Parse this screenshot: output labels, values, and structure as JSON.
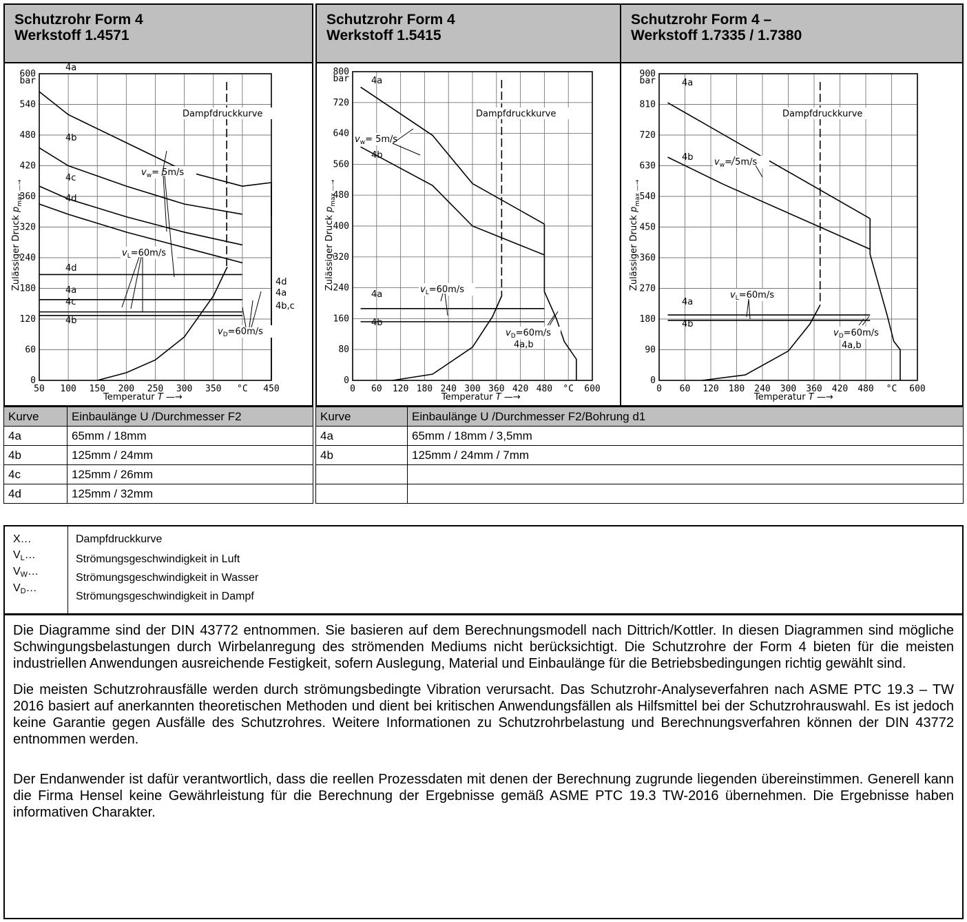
{
  "columns": [
    {
      "title1": "Schutzrohr Form 4",
      "title2": "Werkstoff 1.4571"
    },
    {
      "title1": "Schutzrohr Form 4",
      "title2": "Werkstoff 1.5415"
    },
    {
      "title1": "Schutzrohr Form 4 –",
      "title2": "Werkstoff 1.7335 / 1.7380"
    }
  ],
  "chart_labels": {
    "ylabel": "Zulässiger Druck",
    "pmax": "p",
    "pmax_sub": "max",
    "xlabel": "Temperatur",
    "xsym": "T",
    "unit_bar": "bar",
    "unit_c": "°C",
    "dampf": "Dampfdruckkurve",
    "vw": "v",
    "vw_sub": "w",
    "vw_val": "= 5m/s",
    "vl": "v",
    "vl_sub": "L",
    "vl_val": "=60m/s",
    "vd": "v",
    "vd_sub": "D",
    "vd_val": "=60m/s"
  },
  "chart_data": [
    {
      "type": "line",
      "title": "Schutzrohr Form 4 Werkstoff 1.4571",
      "xlabel": "Temperatur T",
      "ylabel": "Zulässiger Druck p max",
      "x_unit": "°C",
      "y_unit": "bar",
      "xlim": [
        50,
        450
      ],
      "ylim": [
        0,
        600
      ],
      "x_ticks": [
        "50",
        "100",
        "150",
        "200",
        "250",
        "300",
        "350",
        "°C",
        "450"
      ],
      "y_ticks": [
        "0",
        "60",
        "120",
        "180",
        "240",
        "320",
        "360",
        "420",
        "480",
        "540",
        "600"
      ],
      "grid": true,
      "series": [
        {
          "name": "4a",
          "x": [
            50,
            100,
            200,
            300,
            400
          ],
          "y": [
            565,
            520,
            465,
            410,
            380
          ]
        },
        {
          "name": "4b",
          "x": [
            50,
            100,
            200,
            300,
            400
          ],
          "y": [
            455,
            420,
            380,
            345,
            325
          ]
        },
        {
          "name": "4c",
          "x": [
            50,
            100,
            200,
            300,
            400
          ],
          "y": [
            380,
            355,
            320,
            290,
            265
          ]
        },
        {
          "name": "4d",
          "x": [
            50,
            100,
            200,
            300,
            400
          ],
          "y": [
            345,
            325,
            290,
            260,
            230
          ]
        },
        {
          "name": "4d",
          "x": [
            50,
            400
          ],
          "y": [
            207,
            207
          ]
        },
        {
          "name": "4a",
          "x": [
            50,
            400
          ],
          "y": [
            158,
            158
          ]
        },
        {
          "name": "4c",
          "x": [
            50,
            400
          ],
          "y": [
            134,
            134
          ]
        },
        {
          "name": "4b",
          "x": [
            50,
            400
          ],
          "y": [
            127,
            127
          ]
        },
        {
          "name": "Dampfdruckkurve",
          "x": [
            150,
            200,
            250,
            300,
            350,
            374
          ],
          "y": [
            0,
            15,
            40,
            85,
            165,
            222
          ]
        }
      ],
      "annotations": [
        "4a",
        "4b",
        "4c",
        "4d",
        "4d",
        "4a",
        "4c",
        "4b",
        "Dampfdruckkurve",
        "vw = 5m/s",
        "vL =60m/s",
        "vD=60m/s",
        "4d",
        "4a",
        "4b,c"
      ]
    },
    {
      "type": "line",
      "title": "Schutzrohr Form 4 Werkstoff 1.5415",
      "xlabel": "Temperatur T",
      "ylabel": "Zulässiger Druck p max",
      "x_unit": "°C",
      "y_unit": "bar",
      "xlim": [
        0,
        600
      ],
      "ylim": [
        0,
        800
      ],
      "x_ticks": [
        "0",
        "60",
        "120",
        "180",
        "240",
        "300",
        "360",
        "420",
        "480",
        "°C",
        "600"
      ],
      "y_ticks": [
        "0",
        "80",
        "160",
        "240",
        "320",
        "400",
        "480",
        "560",
        "640",
        "720",
        "800"
      ],
      "grid": true,
      "series": [
        {
          "name": "4a",
          "x": [
            20,
            200,
            300,
            480
          ],
          "y": [
            760,
            635,
            510,
            405
          ]
        },
        {
          "name": "4b",
          "x": [
            20,
            200,
            300,
            480
          ],
          "y": [
            605,
            505,
            400,
            325
          ]
        },
        {
          "name": "4a",
          "x": [
            20,
            480
          ],
          "y": [
            186,
            186
          ]
        },
        {
          "name": "4b",
          "x": [
            20,
            480
          ],
          "y": [
            152,
            152
          ]
        },
        {
          "name": "Dampfdruckkurve",
          "x": [
            100,
            200,
            300,
            350,
            374
          ],
          "y": [
            0,
            16,
            86,
            165,
            221
          ]
        }
      ],
      "annotations": [
        "4a",
        "4b",
        "4a",
        "4b",
        "Dampfdruckkurve",
        "vw = 5m/s",
        "vL =60m/s",
        "vD=60m/s",
        "4a,b"
      ]
    },
    {
      "type": "line",
      "title": "Schutzrohr Form 4 – Werkstoff 1.7335 / 1.7380",
      "xlabel": "Temperatur T",
      "ylabel": "Zulässiger Druck p max",
      "x_unit": "°C",
      "y_unit": "bar",
      "xlim": [
        0,
        600
      ],
      "ylim": [
        0,
        900
      ],
      "x_ticks": [
        "0",
        "60",
        "120",
        "180",
        "240",
        "300",
        "360",
        "420",
        "480",
        "°C",
        "600"
      ],
      "y_ticks": [
        "0",
        "90",
        "180",
        "270",
        "360",
        "450",
        "540",
        "630",
        "720",
        "810",
        "900"
      ],
      "grid": true,
      "series": [
        {
          "name": "4a",
          "x": [
            20,
            490
          ],
          "y": [
            815,
            475
          ]
        },
        {
          "name": "4b",
          "x": [
            20,
            150,
            490
          ],
          "y": [
            655,
            575,
            385
          ]
        },
        {
          "name": "4a",
          "x": [
            20,
            490
          ],
          "y": [
            192,
            192
          ]
        },
        {
          "name": "4b",
          "x": [
            20,
            490
          ],
          "y": [
            176,
            176
          ]
        },
        {
          "name": "Dampfdruckkurve",
          "x": [
            100,
            200,
            300,
            350,
            374
          ],
          "y": [
            0,
            16,
            86,
            165,
            221
          ]
        }
      ],
      "annotations": [
        "4a",
        "4b",
        "4a",
        "4b",
        "Dampfdruckkurve",
        "vw = 5m/s",
        "vL =60m/s",
        "vD=60m/s",
        "4a,b"
      ]
    }
  ],
  "table_left": {
    "headers": [
      "Kurve",
      "Einbaulänge U /Durchmesser F2"
    ],
    "rows": [
      [
        "4a",
        "65mm / 18mm"
      ],
      [
        "4b",
        "125mm / 24mm"
      ],
      [
        "4c",
        "125mm / 26mm"
      ],
      [
        "4d",
        "125mm / 32mm"
      ]
    ]
  },
  "table_right": {
    "headers": [
      "Kurve",
      "Einbaulänge U /Durchmesser F2/Bohrung d1"
    ],
    "rows": [
      [
        "4a",
        "65mm / 18mm / 3,5mm"
      ],
      [
        "4b",
        "125mm / 24mm / 7mm"
      ],
      [
        "",
        ""
      ],
      [
        "",
        ""
      ]
    ]
  },
  "legend": {
    "keys": [
      {
        "main": "X…",
        "sub": ""
      },
      {
        "main": "V",
        "sub": "L",
        "tail": "…"
      },
      {
        "main": "V",
        "sub": "W",
        "tail": "…"
      },
      {
        "main": "V",
        "sub": "D",
        "tail": "…"
      }
    ],
    "values": [
      "Dampfdruckkurve",
      "Strömungsgeschwindigkeit in Luft",
      "Strömungsgeschwindigkeit in Wasser",
      "Strömungsgeschwindigkeit in Dampf"
    ]
  },
  "notes": [
    "Die Diagramme sind der DIN 43772 entnommen. Sie basieren auf dem Berechnungsmodell nach Dittrich/Kottler. In diesen Diagrammen sind mögliche Schwingungsbelastungen durch Wirbelanregung des strömenden Mediums nicht berücksichtigt. Die Schutzrohre der Form 4 bieten für die meisten industriellen Anwendungen ausreichende Festigkeit, sofern Auslegung, Material und Einbaulänge für die Betriebsbedingungen richtig gewählt sind.",
    "Die meisten Schutzrohrausfälle werden durch strömungsbedingte Vibration verursacht. Das Schutzrohr-Analyseverfahren nach ASME PTC 19.3 – TW 2016 basiert auf anerkannten theoretischen Methoden und dient bei kritischen Anwendungsfällen als Hilfsmittel bei der Schutzrohrauswahl. Es ist jedoch keine Garantie gegen Ausfälle des Schutzrohres. Weitere Informationen zu Schutzrohrbelastung und Berechnungsverfahren können der DIN 43772 entnommen werden.",
    "Der Endanwender ist dafür verantwortlich, dass die reellen Prozessdaten mit denen der Berechnung zugrunde liegenden übereinstimmen. Generell kann die Firma Hensel keine Gewährleistung für die Berechnung der Ergebnisse gemäß ASME PTC 19.3 TW-2016 übernehmen. Die Ergebnisse haben informativen Charakter."
  ]
}
